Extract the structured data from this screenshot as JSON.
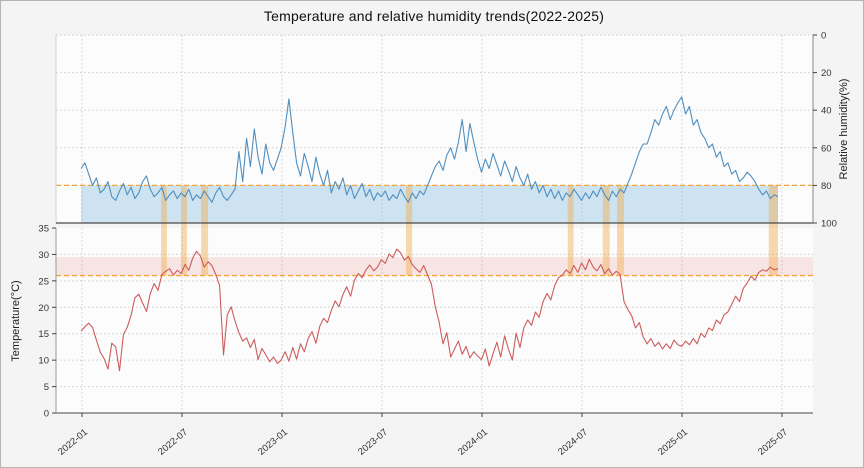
{
  "title": "Temperature and relative humidity trends(2022-2025)",
  "chart_data": {
    "type": "line",
    "title": "Temperature and relative humidity trends(2022-2025)",
    "x_tick_labels": [
      "2022-01",
      "2022-07",
      "2023-01",
      "2023-07",
      "2024-01",
      "2024-07",
      "2025-01",
      "2025-07"
    ],
    "x_start": "2022-01",
    "x_resolution": "weekly",
    "humidity": {
      "ylabel": "Relative humidity(%)",
      "yticks": [
        0,
        20,
        40,
        60,
        80,
        100
      ],
      "ylim": [
        0,
        100
      ],
      "axis_inverted": true,
      "axis_side": "right",
      "line_color": "#4e8fc0",
      "threshold_value": 80,
      "threshold_color": "#f0a63c",
      "shaded_band": [
        80,
        100
      ],
      "shaded_band_color": "rgba(137,190,227,0.40)",
      "values": [
        71,
        68,
        74,
        80,
        76,
        84,
        82,
        78,
        86,
        88,
        83,
        79,
        85,
        81,
        87,
        84,
        78,
        75,
        82,
        86,
        84,
        81,
        88,
        85,
        83,
        87,
        84,
        86,
        82,
        88,
        85,
        87,
        83,
        86,
        89,
        84,
        81,
        86,
        88,
        85,
        82,
        62,
        78,
        55,
        70,
        50,
        65,
        74,
        58,
        68,
        72,
        66,
        60,
        49,
        34,
        52,
        68,
        75,
        63,
        70,
        78,
        65,
        74,
        80,
        72,
        84,
        78,
        82,
        76,
        85,
        80,
        87,
        83,
        79,
        86,
        82,
        88,
        84,
        86,
        83,
        88,
        85,
        87,
        82,
        86,
        89,
        84,
        87,
        83,
        85,
        80,
        75,
        70,
        67,
        72,
        64,
        60,
        66,
        57,
        45,
        62,
        47,
        57,
        66,
        73,
        66,
        71,
        63,
        69,
        75,
        67,
        72,
        78,
        70,
        76,
        80,
        74,
        82,
        78,
        84,
        80,
        86,
        82,
        87,
        83,
        88,
        84,
        86,
        82,
        85,
        88,
        84,
        87,
        83,
        86,
        81,
        85,
        88,
        83,
        86,
        82,
        84,
        79,
        74,
        68,
        62,
        58,
        58,
        52,
        45,
        48,
        42,
        38,
        45,
        40,
        36,
        33,
        42,
        38,
        48,
        45,
        52,
        55,
        60,
        58,
        65,
        62,
        70,
        68,
        74,
        72,
        78,
        76,
        73,
        75,
        78,
        82,
        85,
        83,
        87,
        85,
        86
      ]
    },
    "temperature": {
      "ylabel": "Temperature(°C)",
      "yticks": [
        0,
        5,
        10,
        15,
        20,
        25,
        30,
        35
      ],
      "ylim": [
        0,
        35
      ],
      "axis_inverted": false,
      "axis_side": "left",
      "line_color": "#cd5c5c",
      "threshold_value": 26,
      "threshold_color": "#f0a63c",
      "shaded_band": [
        26,
        29.5
      ],
      "shaded_band_color": "rgba(226,110,100,0.16)",
      "values": [
        15.5,
        16.3,
        17.0,
        16.2,
        13.8,
        11.5,
        10.3,
        8.3,
        13.2,
        12.5,
        8.0,
        14.8,
        16.2,
        18.5,
        21.8,
        22.5,
        20.8,
        19.2,
        22.6,
        24.5,
        23.2,
        26.2,
        26.8,
        27.3,
        26.1,
        27.0,
        26.4,
        28.1,
        27.0,
        29.3,
        30.6,
        29.7,
        27.6,
        28.6,
        27.9,
        26.2,
        24.1,
        11.0,
        18.6,
        20.1,
        17.4,
        15.2,
        13.6,
        14.2,
        12.4,
        13.9,
        10.1,
        12.2,
        11.0,
        9.7,
        10.6,
        9.4,
        10.0,
        11.6,
        9.8,
        12.4,
        10.2,
        13.1,
        11.6,
        14.1,
        15.4,
        13.2,
        16.4,
        17.9,
        17.1,
        19.4,
        21.2,
        20.1,
        22.4,
        23.9,
        22.1,
        25.1,
        26.4,
        25.6,
        27.1,
        28.0,
        26.9,
        27.6,
        29.0,
        28.3,
        30.1,
        29.4,
        31.0,
        30.3,
        28.9,
        29.6,
        28.1,
        27.3,
        26.6,
        27.9,
        26.1,
        24.4,
        20.1,
        17.2,
        13.1,
        15.2,
        10.6,
        12.1,
        13.6,
        11.1,
        12.6,
        10.4,
        11.6,
        10.8,
        10.1,
        12.1,
        8.9,
        11.2,
        13.4,
        10.6,
        14.6,
        12.1,
        10.0,
        15.1,
        12.4,
        16.1,
        17.6,
        16.6,
        19.1,
        18.1,
        21.1,
        22.6,
        21.4,
        24.1,
        25.6,
        26.1,
        27.1,
        26.4,
        27.9,
        26.6,
        28.4,
        27.1,
        29.1,
        27.6,
        26.9,
        28.1,
        26.4,
        27.3,
        26.1,
        26.8,
        26.2,
        21.1,
        19.6,
        18.4,
        16.1,
        17.1,
        14.4,
        13.1,
        14.1,
        12.6,
        13.4,
        12.1,
        13.1,
        12.2,
        13.8,
        12.9,
        12.6,
        13.6,
        12.9,
        14.1,
        13.1,
        15.1,
        14.3,
        16.1,
        15.6,
        17.6,
        16.9,
        18.6,
        19.1,
        20.6,
        22.1,
        21.1,
        23.6,
        24.6,
        25.9,
        25.1,
        26.6,
        27.1,
        26.8,
        27.6,
        27.1,
        27.3
      ]
    },
    "highlight_bands": {
      "meaning": "periods where humidity >= 80% and temperature >= 26°C",
      "color": "rgba(240,173,78,0.45)",
      "week_ranges": [
        [
          20.8,
          22.3
        ],
        [
          26.0,
          27.5
        ],
        [
          31.2,
          33.0
        ],
        [
          84.4,
          86.0
        ],
        [
          126.4,
          127.9
        ],
        [
          135.5,
          137.3
        ],
        [
          139.2,
          141.0
        ],
        [
          178.6,
          181.0
        ]
      ]
    }
  }
}
